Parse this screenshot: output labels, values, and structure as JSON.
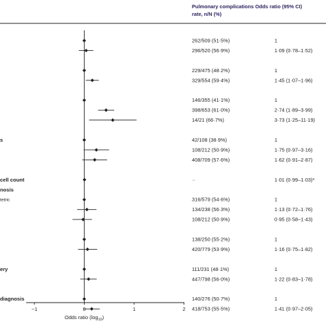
{
  "chart_data": {
    "type": "forest",
    "headers": {
      "rate": [
        "Pulmonary complications",
        "rate, n/N (%)"
      ],
      "or": "Odds ratio (95% CI)"
    },
    "xlabel": "Odds ratio (log",
    "xlabel_sub": "10",
    "xlabel_close": ")",
    "xlim": [
      -1,
      2
    ],
    "xticks": [
      "−1",
      "0",
      "1",
      "2"
    ],
    "row_labels": [
      {
        "text": "s",
        "kind": "bold",
        "row": 10
      },
      {
        "text": "cell count",
        "kind": "bold",
        "row": 14
      },
      {
        "text": "nosis",
        "kind": "bold",
        "row": 15
      },
      {
        "text": "tetric",
        "kind": "small",
        "row": 16
      },
      {
        "text": "ery",
        "kind": "bold",
        "row": 23
      },
      {
        "text": "diagnosis",
        "kind": "bold",
        "row": 26
      }
    ],
    "rows": [
      {
        "rate": "262/509 (51·5%)",
        "or_text": "1",
        "or": 0,
        "ci": null
      },
      {
        "rate": "296/520 (56·9%)",
        "or_text": "1·09 (0·78–1·52)",
        "or": 0.0374,
        "ci": [
          -0.1079,
          0.1818
        ]
      },
      {
        "rate": "229/475 (48·2%)",
        "or_text": "1",
        "or": 0,
        "ci": null
      },
      {
        "rate": "329/554 (59·4%)",
        "or_text": "1·45 (1·07–1·96)",
        "or": 0.1614,
        "ci": [
          0.0294,
          0.2923
        ]
      },
      {
        "rate": "146/355 (41·1%)",
        "or_text": "1",
        "or": 0,
        "ci": null
      },
      {
        "rate": "398/653 (61·0%)",
        "or_text": "2·74 (1·89–3·99)",
        "or": 0.4378,
        "ci": [
          0.2765,
          0.601
        ]
      },
      {
        "rate": "14/21 (66·7%)",
        "or_text": "3·73 (1·25–11·19)",
        "or": 0.5717,
        "ci": [
          0.0969,
          1.0488
        ]
      },
      {
        "rate": "42/108 (38·9%)",
        "or_text": "1",
        "or": 0,
        "ci": null
      },
      {
        "rate": "108/212 (50·9%)",
        "or_text": "1·75 (0·97–3·16)",
        "or": 0.243,
        "ci": [
          -0.0132,
          0.4997
        ]
      },
      {
        "rate": "408/709 (57·6%)",
        "or_text": "1·62 (0·91–2·87)",
        "or": 0.2095,
        "ci": [
          -0.041,
          0.4579
        ]
      },
      {
        "rate": "··",
        "or_text": "1·01 (0·99–1·03)*",
        "or": 0.0043,
        "ci": [
          -0.0044,
          0.0128
        ]
      },
      {
        "rate": "316/579 (54·6%)",
        "or_text": "1",
        "or": 0,
        "ci": null
      },
      {
        "rate": "134/238 (56·3%)",
        "or_text": "1·13 (0·72–1·76)",
        "or": 0.0531,
        "ci": [
          -0.1427,
          0.2455
        ]
      },
      {
        "rate": "108/212 (50·9%)",
        "or_text": "0·95 (0·58–1·43)",
        "or": -0.0223,
        "ci": [
          -0.2366,
          0.1553
        ]
      },
      {
        "rate": "138/250 (55·2%)",
        "or_text": "1",
        "or": 0,
        "ci": null
      },
      {
        "rate": "420/779 (53·9%)",
        "or_text": "1·16 (0·75–1·82)",
        "or": 0.0645,
        "ci": [
          -0.1249,
          0.2601
        ]
      },
      {
        "rate": "111/231 (48·1%)",
        "or_text": "1",
        "or": 0,
        "ci": null
      },
      {
        "rate": "447/798 (56·0%)",
        "or_text": "1·22 (0·83–1·78)",
        "or": 0.0864,
        "ci": [
          -0.0809,
          0.2504
        ]
      },
      {
        "rate": "140/276 (50·7%)",
        "or_text": "1",
        "or": 0,
        "ci": null
      },
      {
        "rate": "418/753 (55·5%)",
        "or_text": "1·41 (0·97–2·05)",
        "or": 0.1492,
        "ci": [
          -0.0132,
          0.3118
        ]
      }
    ]
  }
}
